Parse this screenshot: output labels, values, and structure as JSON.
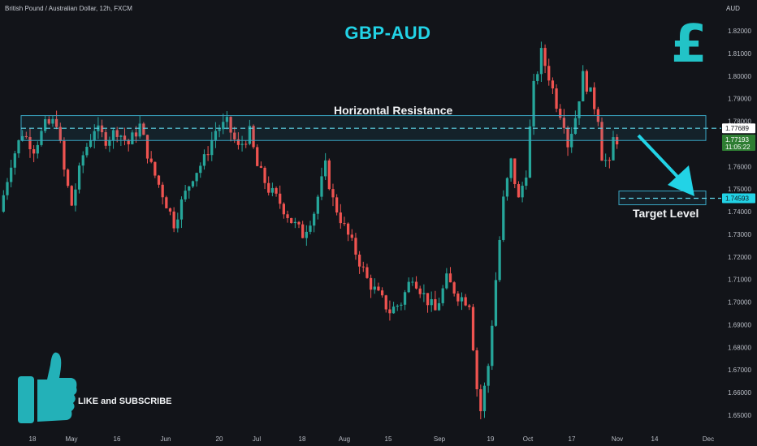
{
  "header": {
    "symbol_text": "British Pound / Australian Dollar, 12h, FXCM",
    "currency": "AUD"
  },
  "overlay": {
    "title": "GBP-AUD",
    "currency_glyph": "£",
    "resistance_label": "Horizontal Resistance",
    "target_label": "Target Level",
    "cta_text": "LIKE and SUBSCRIBE",
    "cta_icon": "thumbs-up-icon"
  },
  "colors": {
    "background": "#121419",
    "up": "#26a69a",
    "down": "#ef5350",
    "accent": "#22d3e6",
    "zone_border": "#3aa6c4"
  },
  "chart_data": {
    "type": "candlestick",
    "title": "GBP-AUD",
    "ylim": [
      1.645,
      1.825
    ],
    "y_ticks": [
      "1.82000",
      "1.81000",
      "1.80000",
      "1.79000",
      "1.78000",
      "1.77000",
      "1.76000",
      "1.75000",
      "1.74000",
      "1.73000",
      "1.72000",
      "1.71000",
      "1.70000",
      "1.69000",
      "1.68000",
      "1.67000",
      "1.66000",
      "1.65000"
    ],
    "x_ticks": [
      "18",
      "May",
      "16",
      "Jun",
      "20",
      "Jul",
      "18",
      "Aug",
      "15",
      "Sep",
      "19",
      "Oct",
      "17",
      "Nov",
      "14",
      "Dec"
    ],
    "resistance_zone": [
      1.7715,
      1.7825
    ],
    "resistance_level": {
      "value": 1.77689,
      "label": "1.77689"
    },
    "current_price": {
      "value": 1.77193,
      "label": "1.77193",
      "countdown": "11:05:22"
    },
    "target_level": {
      "value": 1.74593,
      "label": "1.74593"
    },
    "price_path": [
      [
        0,
        1.74
      ],
      [
        3,
        1.762
      ],
      [
        6,
        1.775
      ],
      [
        9,
        1.768
      ],
      [
        12,
        1.778
      ],
      [
        15,
        1.78
      ],
      [
        17,
        1.758
      ],
      [
        19,
        1.743
      ],
      [
        22,
        1.765
      ],
      [
        25,
        1.777
      ],
      [
        28,
        1.772
      ],
      [
        31,
        1.776
      ],
      [
        34,
        1.77
      ],
      [
        37,
        1.778
      ],
      [
        40,
        1.76
      ],
      [
        43,
        1.748
      ],
      [
        46,
        1.735
      ],
      [
        48,
        1.744
      ],
      [
        51,
        1.756
      ],
      [
        54,
        1.763
      ],
      [
        57,
        1.776
      ],
      [
        60,
        1.779
      ],
      [
        63,
        1.768
      ],
      [
        66,
        1.775
      ],
      [
        68,
        1.76
      ],
      [
        71,
        1.75
      ],
      [
        74,
        1.744
      ],
      [
        77,
        1.736
      ],
      [
        80,
        1.73
      ],
      [
        83,
        1.74
      ],
      [
        86,
        1.76
      ],
      [
        88,
        1.745
      ],
      [
        91,
        1.733
      ],
      [
        94,
        1.722
      ],
      [
        97,
        1.71
      ],
      [
        100,
        1.703
      ],
      [
        103,
        1.696
      ],
      [
        106,
        1.7
      ],
      [
        109,
        1.712
      ],
      [
        112,
        1.703
      ],
      [
        115,
        1.696
      ],
      [
        118,
        1.71
      ],
      [
        121,
        1.703
      ],
      [
        124,
        1.7
      ],
      [
        126,
        1.662
      ],
      [
        127,
        1.652
      ],
      [
        129,
        1.672
      ],
      [
        131,
        1.71
      ],
      [
        133,
        1.745
      ],
      [
        135,
        1.762
      ],
      [
        137,
        1.745
      ],
      [
        139,
        1.758
      ],
      [
        141,
        1.795
      ],
      [
        143,
        1.81
      ],
      [
        145,
        1.8
      ],
      [
        147,
        1.788
      ],
      [
        149,
        1.78
      ],
      [
        150,
        1.77
      ],
      [
        152,
        1.782
      ],
      [
        154,
        1.8
      ],
      [
        156,
        1.792
      ],
      [
        158,
        1.782
      ],
      [
        159,
        1.765
      ],
      [
        161,
        1.76
      ],
      [
        162,
        1.772
      ]
    ]
  }
}
